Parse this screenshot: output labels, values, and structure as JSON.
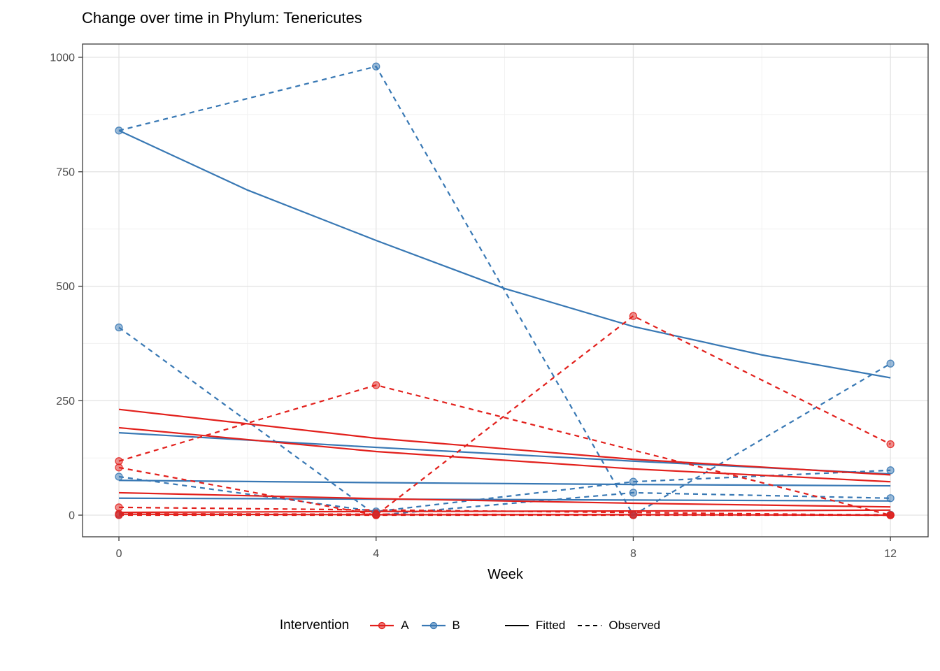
{
  "chart_data": {
    "type": "line",
    "title": "Change over time in Phylum: Tenericutes",
    "xlabel": "Week",
    "ylabel": "",
    "x_ticks": [
      0,
      4,
      8,
      12
    ],
    "y_ticks": [
      0,
      250,
      500,
      750,
      1000
    ],
    "x_minor": [
      2,
      6,
      10
    ],
    "y_minor": [
      125,
      375,
      625,
      875
    ],
    "xlim": [
      -0.566,
      12.586
    ],
    "ylim": [
      -47.3,
      1029.0
    ],
    "grid": true,
    "legend": {
      "title": "Intervention",
      "position": "bottom",
      "groups": [
        {
          "label": "A",
          "color": "#E2201C"
        },
        {
          "label": "B",
          "color": "#3878B4"
        }
      ],
      "linetypes": [
        {
          "label": "Fitted",
          "dash": "solid"
        },
        {
          "label": "Observed",
          "dash": "dashed"
        }
      ]
    },
    "series": [
      {
        "id": "B1",
        "group": "B",
        "fitted": {
          "x": [
            0,
            2,
            4,
            6,
            8,
            10,
            12
          ],
          "y": [
            840,
            710,
            600,
            495,
            412,
            350,
            300
          ]
        },
        "observed": {
          "x": [
            0,
            4,
            8,
            12
          ],
          "y": [
            840,
            980,
            0,
            331
          ]
        }
      },
      {
        "id": "B2",
        "group": "B",
        "fitted": {
          "x": [
            0,
            4,
            8,
            12
          ],
          "y": [
            180,
            148,
            118,
            90
          ]
        },
        "observed": {
          "x": [
            0,
            4,
            8,
            12
          ],
          "y": [
            410,
            0,
            49,
            37
          ]
        }
      },
      {
        "id": "B3",
        "group": "B",
        "fitted": {
          "x": [
            0,
            4,
            8,
            12
          ],
          "y": [
            76,
            71,
            67,
            64
          ]
        },
        "observed": {
          "x": [
            0,
            4,
            8,
            12
          ],
          "y": [
            84,
            8,
            73,
            98
          ]
        }
      },
      {
        "id": "B4",
        "group": "B",
        "fitted": {
          "x": [
            0,
            4,
            8,
            12
          ],
          "y": [
            37,
            35,
            33,
            31
          ]
        },
        "observed": {
          "x": [
            0,
            4,
            8,
            12
          ],
          "y": [
            1,
            1,
            1,
            1
          ]
        }
      },
      {
        "id": "A1",
        "group": "A",
        "fitted": {
          "x": [
            0,
            4,
            8,
            12
          ],
          "y": [
            231,
            168,
            122,
            88
          ]
        },
        "observed": {
          "x": [
            0,
            4,
            12
          ],
          "y": [
            118,
            284,
            0
          ]
        }
      },
      {
        "id": "A2",
        "group": "A",
        "fitted": {
          "x": [
            0,
            4,
            8,
            12
          ],
          "y": [
            191,
            139,
            101,
            73
          ]
        },
        "observed": {
          "x": [
            0,
            4,
            8,
            12
          ],
          "y": [
            104,
            0,
            435,
            155
          ]
        }
      },
      {
        "id": "A3",
        "group": "A",
        "fitted": {
          "x": [
            0,
            4,
            8,
            12
          ],
          "y": [
            49,
            36,
            26,
            18
          ]
        },
        "observed": {
          "x": [
            0,
            12
          ],
          "y": [
            17,
            0
          ]
        }
      },
      {
        "id": "A4",
        "group": "A",
        "fitted": {
          "x": [
            0,
            4,
            8,
            12
          ],
          "y": [
            6,
            8,
            9,
            11
          ]
        },
        "observed": {
          "x": [
            0,
            4,
            8,
            12
          ],
          "y": [
            0,
            0,
            0,
            0
          ]
        }
      },
      {
        "id": "A5",
        "group": "A",
        "fitted": {
          "x": [
            0,
            4,
            8,
            12
          ],
          "y": [
            2,
            1,
            1,
            0
          ]
        },
        "observed": {
          "x": [
            0,
            4,
            8,
            12
          ],
          "y": [
            3,
            2,
            1,
            0
          ]
        }
      }
    ],
    "style": {
      "grid_major_color": "#e3e3e3",
      "grid_minor_color": "#f0f0f0",
      "panel_border_color": "#3c3c3c",
      "tick_color": "#3c3c3c",
      "tick_label_color": "#4d4d4d",
      "point_radius": 5,
      "line_width": 2.2,
      "dash_pattern": "7,6"
    }
  }
}
